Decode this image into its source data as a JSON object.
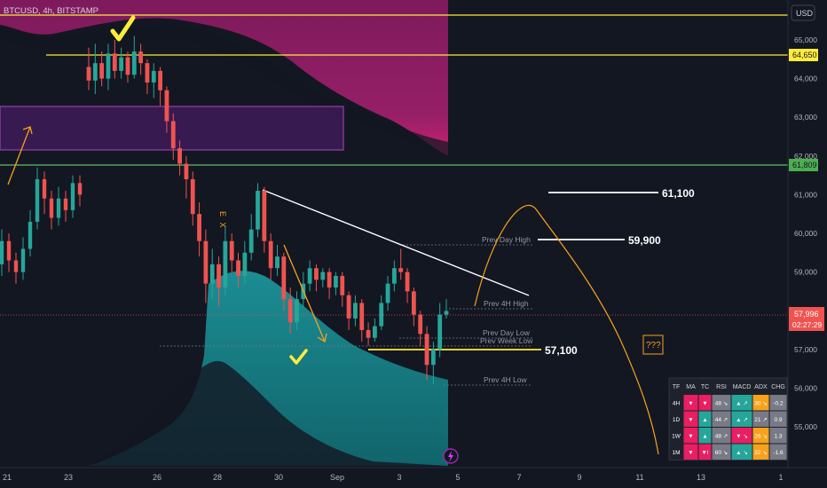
{
  "header": {
    "symbol": "BTCUSD, 4h, BITSTAMP",
    "currency": "USD"
  },
  "price_badges": {
    "last_price": "57,996",
    "countdown": "02:27:29",
    "level_64650": "64,650",
    "level_61809": "61,809"
  },
  "annotations": {
    "ex": "E X",
    "question": "???",
    "level_61100": "61,100",
    "level_59900": "59,900",
    "level_57100": "57,100",
    "prev_day_high": "Prev Day High",
    "prev_4h_high": "Prev 4H High",
    "prev_day_low": "Prev Day Low",
    "prev_week_low": "Prev Week Low",
    "prev_4h_low": "Prev 4H Low"
  },
  "colors": {
    "background": "#131722",
    "bull": "#26a69a",
    "bear": "#ef5350",
    "yellow": "#ffeb3b",
    "green_line": "#4caf50",
    "orange": "#f7a21b",
    "magenta": "#9c1e6e",
    "teal": "#1a8f94"
  },
  "chart_data": {
    "type": "candlestick",
    "y_ticks": [
      "65,000",
      "64,000",
      "63,000",
      "62,000",
      "61,000",
      "60,000",
      "59,000",
      "58,000",
      "57,000",
      "56,000",
      "55,000"
    ],
    "x_ticks": [
      "21",
      "23",
      "26",
      "28",
      "30",
      "Sep",
      "3",
      "5",
      "7",
      "9",
      "11",
      "13",
      "1"
    ],
    "ylim": [
      54400,
      65900
    ],
    "candles": [
      [
        64300,
        63950,
        64800,
        63700
      ],
      [
        63950,
        64400,
        64900,
        63600
      ],
      [
        64400,
        64000,
        64700,
        63800
      ],
      [
        64000,
        64650,
        64900,
        63700
      ],
      [
        64650,
        64200,
        65000,
        64000
      ],
      [
        64200,
        64550,
        64800,
        64000
      ],
      [
        64550,
        64100,
        64700,
        63900
      ],
      [
        64100,
        64700,
        65100,
        64000
      ],
      [
        64700,
        64400,
        64900,
        64100
      ],
      [
        64400,
        63900,
        64500,
        63600
      ],
      [
        63900,
        64200,
        64400,
        63500
      ],
      [
        64200,
        63700,
        64300,
        63300
      ],
      [
        63700,
        62900,
        63800,
        62600
      ],
      [
        62900,
        62200,
        63100,
        61900
      ],
      [
        62200,
        61800,
        62400,
        61500
      ],
      [
        61800,
        61400,
        62000,
        60900
      ],
      [
        61400,
        60500,
        61600,
        60200
      ],
      [
        60500,
        59800,
        60800,
        59400
      ],
      [
        59800,
        58700,
        60100,
        58200
      ],
      [
        58700,
        59200,
        59600,
        58300
      ],
      [
        59200,
        58600,
        59400,
        58100
      ],
      [
        58600,
        59800,
        60200,
        58400
      ],
      [
        59800,
        59300,
        60000,
        59000
      ],
      [
        59300,
        58900,
        59500,
        58600
      ],
      [
        58900,
        59500,
        59800,
        58700
      ],
      [
        59500,
        60100,
        60500,
        59300
      ],
      [
        60100,
        61100,
        61300,
        59900
      ],
      [
        61100,
        59800,
        61200,
        59500
      ],
      [
        59800,
        59100,
        60000,
        58800
      ],
      [
        59100,
        59400,
        59700,
        58900
      ],
      [
        59400,
        58300,
        59500,
        58000
      ],
      [
        58300,
        57700,
        58600,
        57400
      ],
      [
        57700,
        58300,
        58500,
        57500
      ],
      [
        58300,
        58700,
        59000,
        58100
      ],
      [
        58700,
        59100,
        59300,
        58500
      ],
      [
        59100,
        58800,
        59200,
        58500
      ],
      [
        58800,
        59000,
        59100,
        58600
      ],
      [
        59000,
        58600,
        59100,
        58300
      ],
      [
        58600,
        58900,
        59000,
        58400
      ],
      [
        58900,
        58400,
        59000,
        58100
      ],
      [
        58400,
        57800,
        58500,
        57500
      ],
      [
        57800,
        58200,
        58400,
        57600
      ],
      [
        58200,
        57500,
        58300,
        57200
      ],
      [
        57500,
        57300,
        57700,
        57100
      ],
      [
        57300,
        57600,
        57800,
        57200
      ],
      [
        57600,
        58200,
        58400,
        57500
      ],
      [
        58200,
        58700,
        58900,
        58000
      ],
      [
        58700,
        59100,
        59300,
        58500
      ],
      [
        59100,
        59000,
        59600,
        58800
      ],
      [
        59000,
        58500,
        59100,
        58200
      ],
      [
        58500,
        57900,
        58600,
        57600
      ],
      [
        57900,
        57400,
        58000,
        57100
      ],
      [
        57400,
        56600,
        57600,
        56200
      ],
      [
        56600,
        57000,
        57200,
        56100
      ],
      [
        57000,
        57900,
        58200,
        56800
      ],
      [
        57900,
        57996,
        58300,
        57800
      ]
    ],
    "levels": [
      {
        "value": 65700,
        "label": ""
      },
      {
        "value": 64650,
        "label": "64,650"
      },
      {
        "value": 61809,
        "label": "61,809"
      },
      {
        "value": 61100,
        "label": "61,100"
      },
      {
        "value": 59900,
        "label": "59,900"
      },
      {
        "value": 57100,
        "label": "57,100"
      }
    ],
    "table": {
      "headers": [
        "TF",
        "MA",
        "TC",
        "RSI",
        "MACD",
        "ADX",
        "CHG"
      ],
      "rows": [
        {
          "tf": "4H",
          "ma": "▼",
          "tc": "▼",
          "rsi": "48 ↘",
          "macd": "▲ ↗",
          "adx": "30 ↘",
          "chg": "-0.2"
        },
        {
          "tf": "1D",
          "ma": "▼",
          "tc": "▲",
          "rsi": "44 ↗",
          "macd": "▲ ↗",
          "adx": "21 ↗",
          "chg": "0.9"
        },
        {
          "tf": "1W",
          "ma": "▼",
          "tc": "▲",
          "rsi": "48 ↗",
          "macd": "▼ ↘",
          "adx": "26 ↘",
          "chg": "1.3"
        },
        {
          "tf": "1M",
          "ma": "▼",
          "tc": "▼I",
          "rsi": "60 ↘",
          "macd": "▲ ↘",
          "adx": "32 ↘",
          "chg": "-1.6"
        }
      ]
    }
  }
}
